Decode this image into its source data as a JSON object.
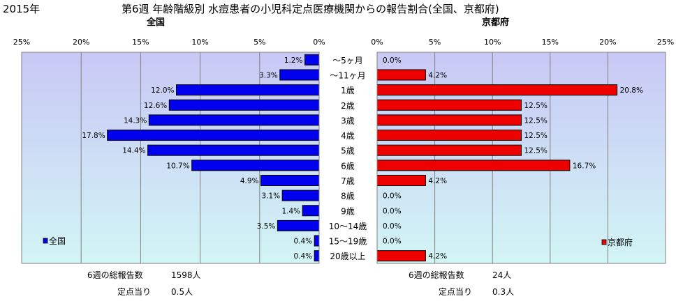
{
  "header": {
    "year": "2015年",
    "title": "第6週 年齢階級別 水痘患者の小児科定点医療機関からの報告割合(全国、京都府)"
  },
  "stats": {
    "left": {
      "total_label": "6週の総報告数",
      "total_value": "1598人",
      "per_label": "定点当り",
      "per_value": "0.5人"
    },
    "right": {
      "total_label": "6週の総報告数",
      "total_value": "24人",
      "per_label": "定点当り",
      "per_value": "0.3人"
    }
  },
  "colors": {
    "national": "#0000ee",
    "kyoto": "#ee0000",
    "bg_top": "#c8c8f5",
    "bg_bottom": "#d2f5f5",
    "grid": "#808080"
  },
  "chart_data": [
    {
      "type": "bar",
      "orientation": "horizontal",
      "direction": "right-to-left",
      "title": "全国",
      "categories": [
        "～5ヶ月",
        "～11ヶ月",
        "1歳",
        "2歳",
        "3歳",
        "4歳",
        "5歳",
        "6歳",
        "7歳",
        "8歳",
        "9歳",
        "10～14歳",
        "15～19歳",
        "20歳以上"
      ],
      "series": [
        {
          "name": "全国",
          "values": [
            1.2,
            3.3,
            12.0,
            12.6,
            14.3,
            17.8,
            14.4,
            10.7,
            4.9,
            3.1,
            1.4,
            3.5,
            0.4,
            0.4
          ],
          "labels": [
            "1.2%",
            "3.3%",
            "12.0%",
            "12.6%",
            "14.3%",
            "17.8%",
            "14.4%",
            "10.7%",
            "4.9%",
            "3.1%",
            "1.4%",
            "3.5%",
            "0.4%",
            "0.4%"
          ]
        }
      ],
      "xlim": [
        0,
        25
      ],
      "ticks": [
        "25%",
        "20%",
        "15%",
        "10%",
        "5%",
        "0%"
      ],
      "grid": true,
      "legend": "bottom-left"
    },
    {
      "type": "bar",
      "orientation": "horizontal",
      "title": "京都府",
      "categories": [
        "～5ヶ月",
        "～11ヶ月",
        "1歳",
        "2歳",
        "3歳",
        "4歳",
        "5歳",
        "6歳",
        "7歳",
        "8歳",
        "9歳",
        "10～14歳",
        "15～19歳",
        "20歳以上"
      ],
      "series": [
        {
          "name": "京都府",
          "values": [
            0.0,
            4.2,
            20.8,
            12.5,
            12.5,
            12.5,
            12.5,
            16.7,
            4.2,
            0.0,
            0.0,
            0.0,
            0.0,
            4.2
          ],
          "labels": [
            "0.0%",
            "4.2%",
            "20.8%",
            "12.5%",
            "12.5%",
            "12.5%",
            "12.5%",
            "16.7%",
            "4.2%",
            "0.0%",
            "0.0%",
            "0.0%",
            "0.0%",
            "4.2%"
          ]
        }
      ],
      "xlim": [
        0,
        25
      ],
      "ticks": [
        "0%",
        "5%",
        "10%",
        "15%",
        "20%",
        "25%"
      ],
      "grid": true,
      "legend": "bottom-right"
    }
  ]
}
